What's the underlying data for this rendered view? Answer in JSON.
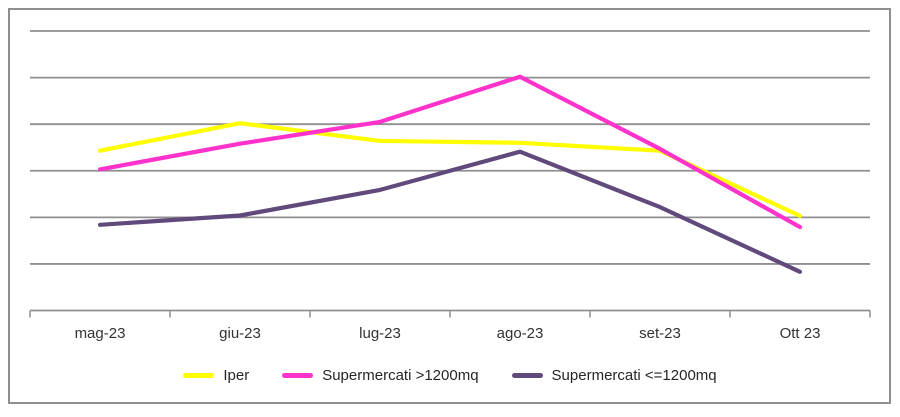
{
  "chart_data": {
    "type": "line",
    "categories": [
      "mag-23",
      "giu-23",
      "lug-23",
      "ago-23",
      "set-23",
      "Ott 23"
    ],
    "series": [
      {
        "name": "Iper",
        "color": "#FFFF00",
        "values": [
          3.43,
          4.02,
          3.64,
          3.6,
          3.43,
          2.03
        ]
      },
      {
        "name": "Supermercati >1200mq",
        "color": "#FF33CC",
        "values": [
          3.03,
          3.58,
          4.05,
          5.02,
          3.47,
          1.79
        ]
      },
      {
        "name": "Supermercati <=1200mq",
        "color": "#604A7B",
        "values": [
          1.84,
          2.04,
          2.59,
          3.41,
          2.22,
          0.83
        ]
      }
    ],
    "title": "",
    "xlabel": "",
    "ylabel": "",
    "ylim": [
      0,
      6
    ],
    "y_tick_labels_visible": false,
    "gridlines": "horizontal",
    "gridline_count": 6,
    "grid_color": "#8f8f8f",
    "axis_color": "#8f8f8f",
    "tick_label_color": "#333333",
    "legend_position": "bottom",
    "frame_border_color": "#8f8f8f"
  }
}
